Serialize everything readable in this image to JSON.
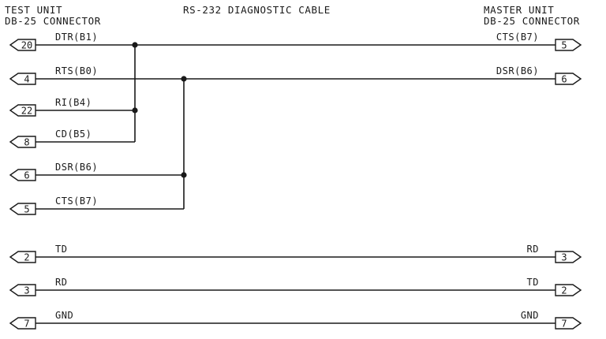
{
  "header": {
    "test_unit_line1": "TEST UNIT",
    "test_unit_line2": "DB-25 CONNECTOR",
    "title": "RS-232 DIAGNOSTIC CABLE",
    "master_unit_line1": "MASTER UNIT",
    "master_unit_line2": "DB-25 CONNECTOR"
  },
  "left_pins": [
    {
      "pin": "20",
      "label": "DTR(B1)"
    },
    {
      "pin": "4",
      "label": "RTS(B0)"
    },
    {
      "pin": "22",
      "label": "RI(B4)"
    },
    {
      "pin": "8",
      "label": "CD(B5)"
    },
    {
      "pin": "6",
      "label": "DSR(B6)"
    },
    {
      "pin": "5",
      "label": "CTS(B7)"
    },
    {
      "pin": "2",
      "label": "TD"
    },
    {
      "pin": "3",
      "label": "RD"
    },
    {
      "pin": "7",
      "label": "GND"
    }
  ],
  "right_pins": [
    {
      "pin": "5",
      "label": "CTS(B7)"
    },
    {
      "pin": "6",
      "label": "DSR(B6)"
    },
    {
      "pin": "3",
      "label": "RD"
    },
    {
      "pin": "2",
      "label": "TD"
    },
    {
      "pin": "7",
      "label": "GND"
    }
  ],
  "colors": {
    "ink": "#1a1a1a",
    "background": "#ffffff"
  }
}
